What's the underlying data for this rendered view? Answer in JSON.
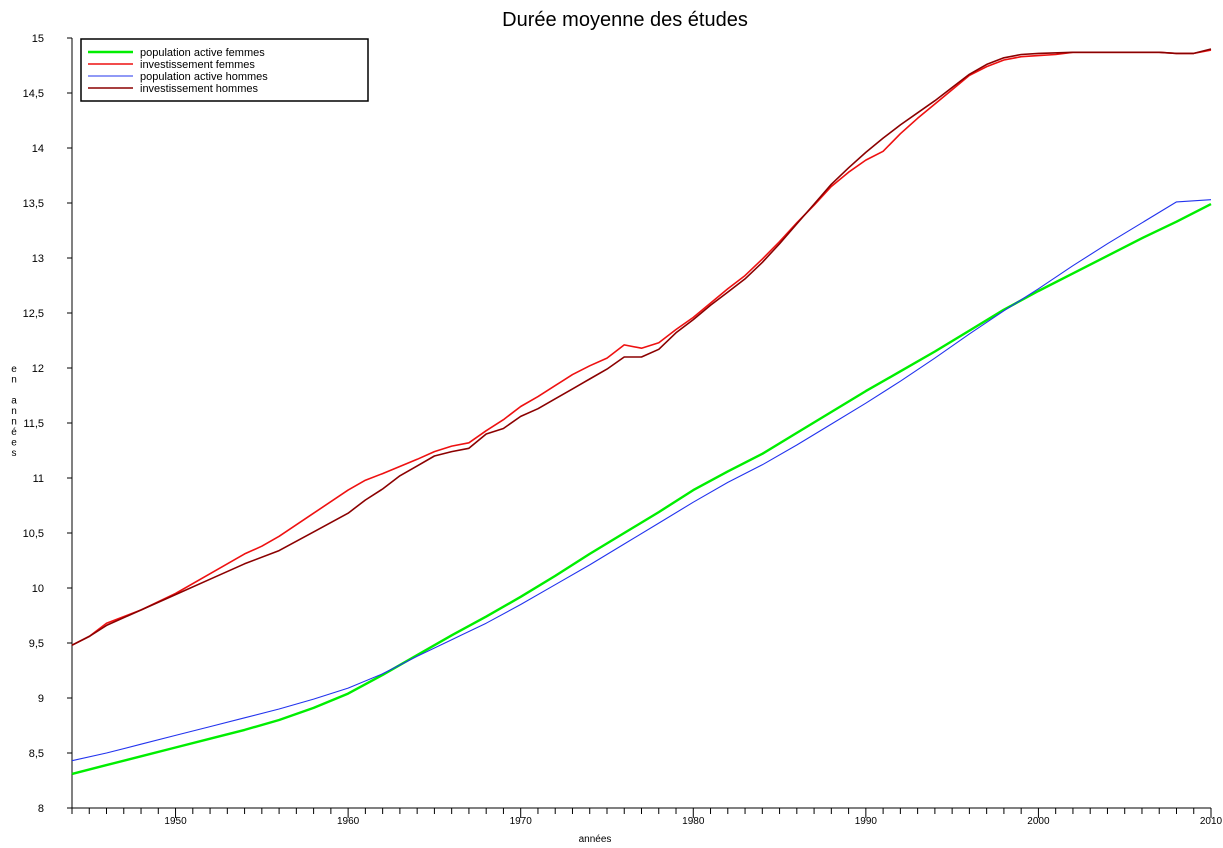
{
  "chart_data": {
    "type": "line",
    "title": "Durée moyenne des études",
    "xlabel": "années",
    "ylabel": "en années",
    "xlim": [
      1944,
      2010
    ],
    "ylim": [
      8,
      15
    ],
    "y_ticks": [
      "8",
      "8,5",
      "9",
      "9,5",
      "10",
      "10,5",
      "11",
      "11,5",
      "12",
      "12,5",
      "13",
      "13,5",
      "14",
      "14,5",
      "15"
    ],
    "x_ticks": [
      "1950",
      "1960",
      "1970",
      "1980",
      "1990",
      "2000",
      "2010"
    ],
    "x_tick_values": [
      1950,
      1960,
      1970,
      1980,
      1990,
      2000,
      2010
    ],
    "grid": false,
    "legend_position": "top-left",
    "series": [
      {
        "name": "population active femmes",
        "color": "#00ee00",
        "x": [
          1944,
          1946,
          1948,
          1950,
          1952,
          1954,
          1956,
          1958,
          1960,
          1962,
          1964,
          1966,
          1968,
          1970,
          1972,
          1974,
          1976,
          1978,
          1980,
          1982,
          1984,
          1986,
          1988,
          1990,
          1992,
          1994,
          1996,
          1998,
          2000,
          2002,
          2004,
          2006,
          2008,
          2010
        ],
        "values": [
          8.31,
          8.39,
          8.47,
          8.55,
          8.63,
          8.71,
          8.8,
          8.91,
          9.04,
          9.21,
          9.39,
          9.57,
          9.74,
          9.92,
          10.11,
          10.31,
          10.5,
          10.69,
          10.89,
          11.06,
          11.22,
          11.41,
          11.6,
          11.79,
          11.97,
          12.15,
          12.34,
          12.53,
          12.7,
          12.86,
          13.02,
          13.18,
          13.33,
          13.49
        ]
      },
      {
        "name": "investissement femmes",
        "color": "#ee1111",
        "x": [
          1944,
          1945,
          1946,
          1948,
          1950,
          1952,
          1954,
          1955,
          1956,
          1958,
          1960,
          1961,
          1962,
          1964,
          1965,
          1966,
          1967,
          1968,
          1969,
          1970,
          1971,
          1972,
          1973,
          1974,
          1975,
          1976,
          1977,
          1978,
          1979,
          1980,
          1981,
          1982,
          1983,
          1984,
          1985,
          1986,
          1987,
          1988,
          1989,
          1990,
          1991,
          1992,
          1993,
          1994,
          1995,
          1996,
          1997,
          1998,
          1999,
          2000,
          2001,
          2002,
          2004,
          2006,
          2007,
          2008,
          2009,
          2010
        ],
        "values": [
          9.48,
          9.56,
          9.68,
          9.8,
          9.95,
          10.13,
          10.31,
          10.38,
          10.47,
          10.68,
          10.89,
          10.98,
          11.04,
          11.17,
          11.24,
          11.29,
          11.32,
          11.43,
          11.53,
          11.65,
          11.74,
          11.84,
          11.94,
          12.02,
          12.09,
          12.21,
          12.18,
          12.23,
          12.35,
          12.46,
          12.59,
          12.72,
          12.84,
          12.99,
          13.15,
          13.32,
          13.48,
          13.65,
          13.78,
          13.89,
          13.97,
          14.13,
          14.27,
          14.4,
          14.53,
          14.66,
          14.74,
          14.8,
          14.83,
          14.84,
          14.85,
          14.87,
          14.87,
          14.87,
          14.87,
          14.86,
          14.86,
          14.89
        ]
      },
      {
        "name": "population active hommes",
        "color": "#2233ee",
        "x": [
          1944,
          1946,
          1948,
          1950,
          1952,
          1954,
          1956,
          1958,
          1960,
          1962,
          1964,
          1966,
          1968,
          1970,
          1972,
          1974,
          1976,
          1978,
          1980,
          1982,
          1984,
          1986,
          1988,
          1990,
          1992,
          1994,
          1996,
          1998,
          2000,
          2002,
          2004,
          2006,
          2008,
          2010
        ],
        "values": [
          8.43,
          8.5,
          8.58,
          8.66,
          8.74,
          8.82,
          8.9,
          8.99,
          9.09,
          9.22,
          9.38,
          9.53,
          9.68,
          9.85,
          10.03,
          10.21,
          10.4,
          10.59,
          10.78,
          10.96,
          11.12,
          11.3,
          11.49,
          11.68,
          11.88,
          12.09,
          12.31,
          12.52,
          12.72,
          12.93,
          13.13,
          13.32,
          13.51,
          13.53
        ]
      },
      {
        "name": "investissement hommes",
        "color": "#8b0000",
        "x": [
          1944,
          1945,
          1946,
          1948,
          1950,
          1952,
          1954,
          1956,
          1958,
          1960,
          1961,
          1962,
          1963,
          1964,
          1965,
          1966,
          1967,
          1968,
          1969,
          1970,
          1971,
          1972,
          1973,
          1974,
          1975,
          1976,
          1977,
          1978,
          1979,
          1980,
          1981,
          1982,
          1983,
          1984,
          1985,
          1986,
          1987,
          1988,
          1989,
          1990,
          1991,
          1992,
          1993,
          1994,
          1995,
          1996,
          1997,
          1998,
          1999,
          2000,
          2002,
          2004,
          2006,
          2007,
          2008,
          2009,
          2010
        ],
        "values": [
          9.48,
          9.56,
          9.66,
          9.8,
          9.94,
          10.08,
          10.22,
          10.34,
          10.51,
          10.68,
          10.8,
          10.9,
          11.02,
          11.11,
          11.2,
          11.24,
          11.27,
          11.4,
          11.45,
          11.56,
          11.63,
          11.72,
          11.81,
          11.9,
          11.99,
          12.1,
          12.1,
          12.17,
          12.32,
          12.44,
          12.57,
          12.69,
          12.81,
          12.96,
          13.13,
          13.31,
          13.49,
          13.67,
          13.82,
          13.96,
          14.09,
          14.21,
          14.32,
          14.43,
          14.55,
          14.67,
          14.76,
          14.82,
          14.85,
          14.86,
          14.87,
          14.87,
          14.87,
          14.87,
          14.86,
          14.86,
          14.9
        ]
      }
    ]
  }
}
